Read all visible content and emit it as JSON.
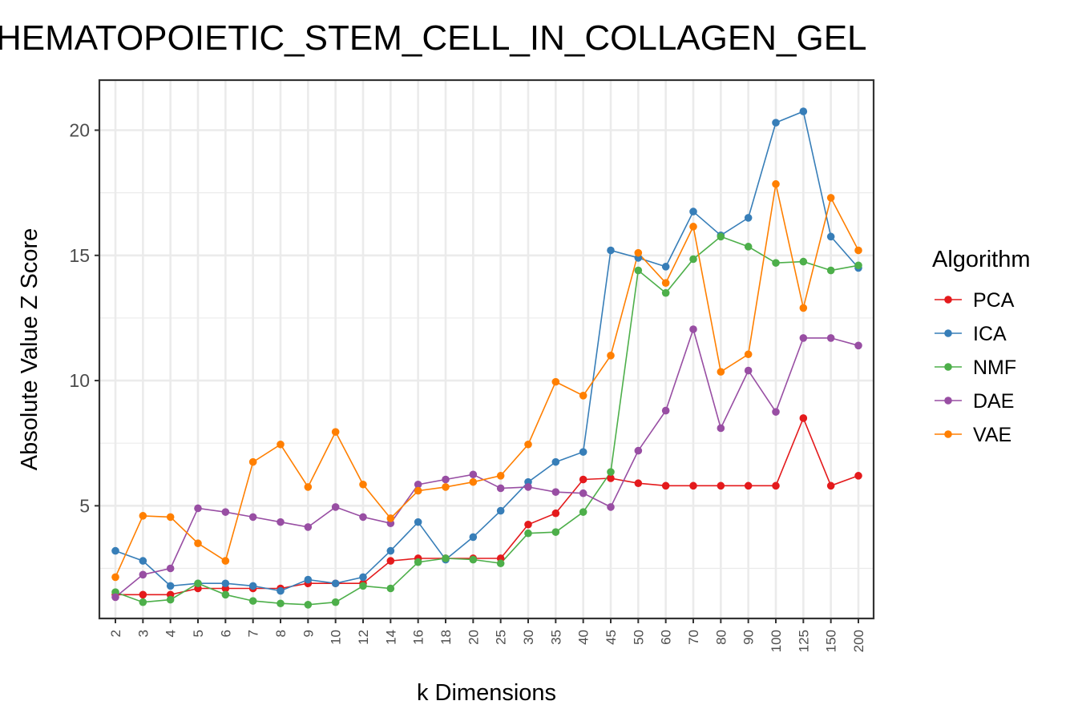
{
  "chart_data": {
    "type": "line",
    "title": "HEMATOPOIETIC_STEM_CELL_IN_COLLAGEN_GEL",
    "xlabel": "k Dimensions",
    "ylabel": "Absolute Value Z Score",
    "categories": [
      "2",
      "3",
      "4",
      "5",
      "6",
      "7",
      "8",
      "9",
      "10",
      "12",
      "14",
      "16",
      "18",
      "20",
      "25",
      "30",
      "35",
      "40",
      "45",
      "50",
      "60",
      "70",
      "80",
      "90",
      "100",
      "125",
      "150",
      "200"
    ],
    "y_ticks": [
      "5",
      "10",
      "15",
      "20"
    ],
    "ylim": [
      0.5,
      22
    ],
    "grid": true,
    "legend_title": "Algorithm",
    "legend_position": "right",
    "series": [
      {
        "name": "PCA",
        "color": "#e41a1c",
        "values": [
          1.45,
          1.45,
          1.45,
          1.7,
          1.7,
          1.7,
          1.7,
          1.9,
          1.9,
          1.9,
          2.8,
          2.9,
          2.9,
          2.9,
          2.9,
          4.25,
          4.7,
          6.05,
          6.1,
          5.9,
          5.8,
          5.8,
          5.8,
          5.8,
          5.8,
          8.5,
          5.8,
          6.2
        ]
      },
      {
        "name": "ICA",
        "color": "#377eb8",
        "values": [
          3.2,
          2.8,
          1.8,
          1.9,
          1.9,
          1.8,
          1.6,
          2.05,
          1.9,
          2.15,
          3.2,
          4.35,
          2.85,
          3.75,
          4.8,
          5.95,
          6.75,
          7.15,
          15.2,
          14.9,
          14.55,
          16.75,
          15.8,
          16.5,
          20.3,
          20.75,
          15.75,
          14.5
        ]
      },
      {
        "name": "NMF",
        "color": "#4daf4a",
        "values": [
          1.55,
          1.15,
          1.25,
          1.9,
          1.45,
          1.2,
          1.1,
          1.05,
          1.15,
          1.8,
          1.7,
          2.75,
          2.9,
          2.85,
          2.7,
          3.9,
          3.95,
          4.75,
          6.35,
          14.4,
          13.5,
          14.85,
          15.75,
          15.35,
          14.7,
          14.75,
          14.4,
          14.6
        ]
      },
      {
        "name": "DAE",
        "color": "#984ea3",
        "values": [
          1.35,
          2.25,
          2.5,
          4.9,
          4.75,
          4.55,
          4.35,
          4.15,
          4.95,
          4.55,
          4.3,
          5.85,
          6.05,
          6.25,
          5.7,
          5.75,
          5.55,
          5.5,
          4.95,
          7.2,
          8.8,
          12.05,
          8.1,
          10.4,
          8.75,
          11.7,
          11.7,
          11.4
        ]
      },
      {
        "name": "VAE",
        "color": "#ff7f00",
        "values": [
          2.15,
          4.6,
          4.55,
          3.5,
          2.8,
          6.75,
          7.45,
          5.75,
          7.95,
          5.85,
          4.5,
          5.6,
          5.75,
          5.95,
          6.2,
          7.45,
          9.95,
          9.4,
          11.0,
          15.1,
          13.9,
          16.15,
          10.35,
          11.05,
          17.85,
          12.9,
          17.3,
          15.2
        ]
      }
    ]
  }
}
